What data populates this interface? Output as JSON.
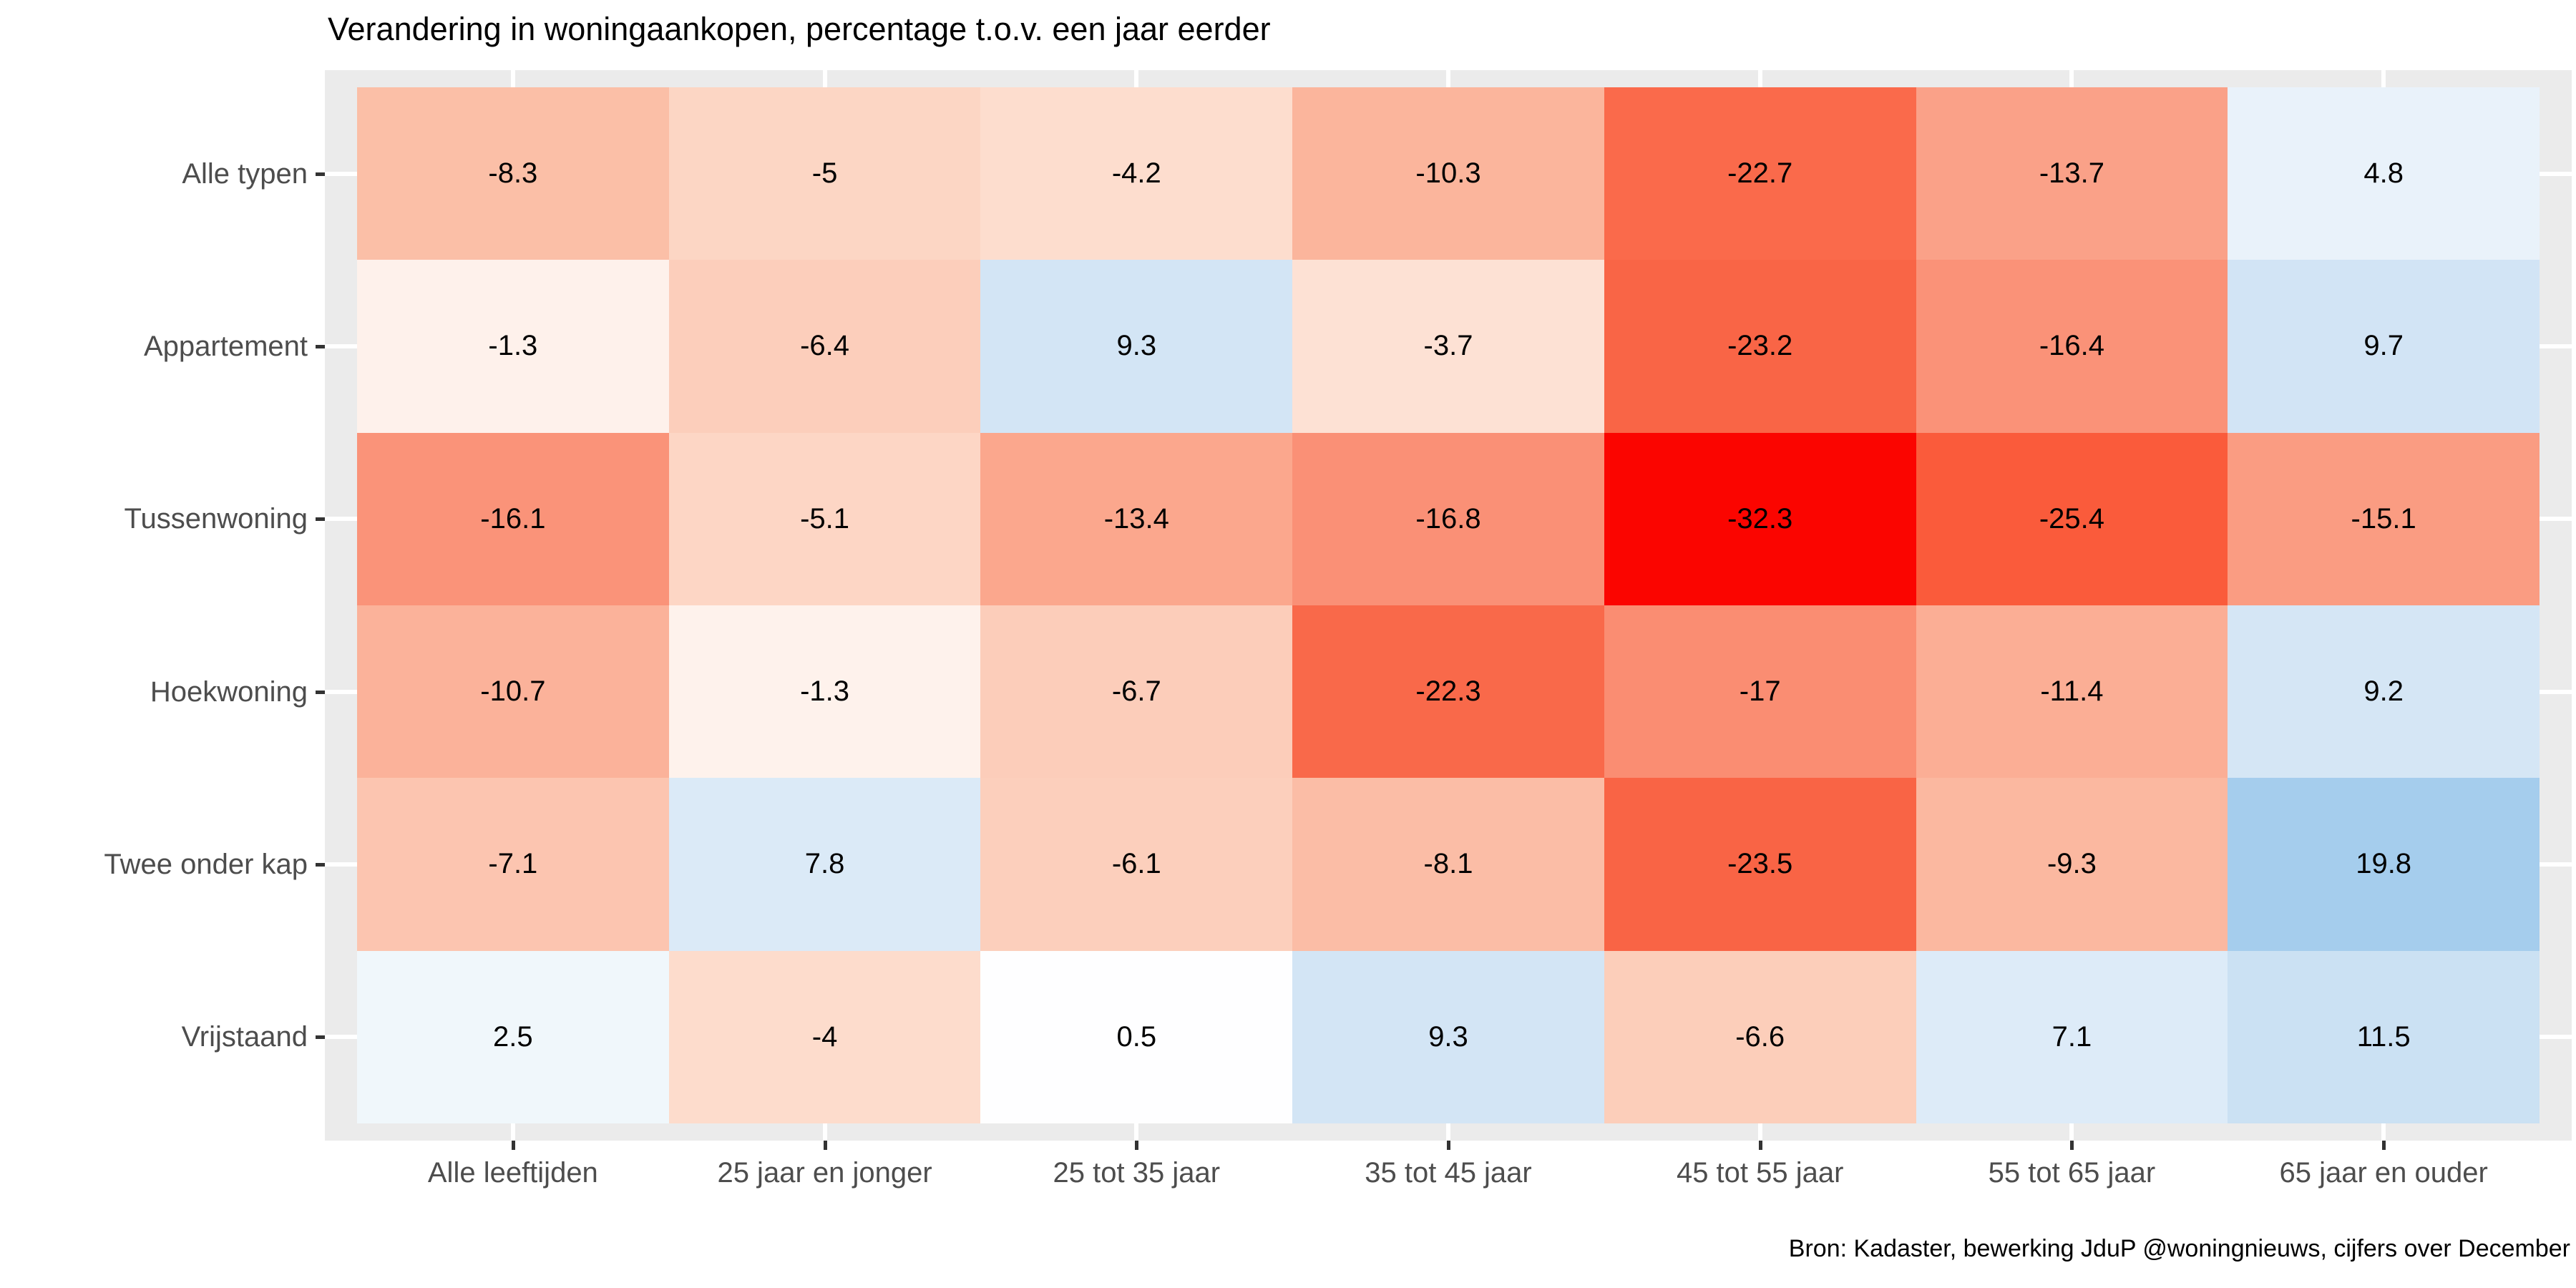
{
  "page": {
    "title": "Verandering in woningaankopen, percentage t.o.v. een jaar eerder",
    "source_note": "Bron: Kadaster, bewerking JduP @woningnieuws, cijfers over December"
  },
  "chart_data": {
    "type": "heatmap",
    "title": "Verandering in woningaankopen, percentage t.o.v. een jaar eerder",
    "x_categories": [
      "Alle leeftijden",
      "25 jaar en jonger",
      "25 tot 35 jaar",
      "35 tot 45 jaar",
      "45 tot 55 jaar",
      "55 tot 65 jaar",
      "65 jaar en ouder"
    ],
    "y_categories": [
      "Alle typen",
      "Appartement",
      "Tussenwoning",
      "Hoekwoning",
      "Twee onder kap",
      "Vrijstaand"
    ],
    "series": [
      {
        "name": "Alle typen",
        "values": [
          -8.3,
          -5,
          -4.2,
          -10.3,
          -22.7,
          -13.7,
          4.8
        ],
        "cell_colors": [
          "#FBBFA7",
          "#FCD6C4",
          "#FDDDCE",
          "#FBB59C",
          "#FA6A4B",
          "#FAA188",
          "#E9F2FA"
        ]
      },
      {
        "name": "Appartement",
        "values": [
          -1.3,
          -6.4,
          9.3,
          -3.7,
          -23.2,
          -16.4,
          9.7
        ],
        "cell_colors": [
          "#FEF1EB",
          "#FCCEBB",
          "#D3E5F5",
          "#FDE1D4",
          "#F96546",
          "#FA9278",
          "#D2E4F5"
        ]
      },
      {
        "name": "Tussenwoning",
        "values": [
          -16.1,
          -5.1,
          -13.4,
          -16.8,
          -32.3,
          -25.4,
          -15.1
        ],
        "cell_colors": [
          "#FA9379",
          "#FDD6C5",
          "#FBA78D",
          "#FA9076",
          "#FB0500",
          "#FA5B3B",
          "#FA9C82"
        ]
      },
      {
        "name": "Hoekwoning",
        "values": [
          -10.7,
          -1.3,
          -6.7,
          -22.3,
          -17,
          -11.4,
          9.2
        ],
        "cell_colors": [
          "#FBB29A",
          "#FEF2EC",
          "#FCCDBA",
          "#F9694A",
          "#FA8D72",
          "#FBAE95",
          "#D5E6F5"
        ]
      },
      {
        "name": "Twee onder kap",
        "values": [
          -7.1,
          7.8,
          -6.1,
          -8.1,
          -23.5,
          -9.3,
          19.8
        ],
        "cell_colors": [
          "#FCC5B0",
          "#DBEAF7",
          "#FCCFBC",
          "#FBBDA6",
          "#F96445",
          "#FBB8A0",
          "#A5CDED"
        ]
      },
      {
        "name": "Vrijstaand",
        "values": [
          2.5,
          -4,
          0.5,
          9.3,
          -6.6,
          7.1,
          11.5
        ],
        "cell_colors": [
          "#F0F7FB",
          "#FDDCCC",
          "#FEFEFF",
          "#D3E5F5",
          "#FCCEBA",
          "#DDEBF8",
          "#CBE1F3"
        ]
      }
    ],
    "value_domain": [
      -32.3,
      19.8
    ],
    "colorscale": {
      "negative_end": "#FB0500",
      "mid": "#FFFFFF",
      "positive_end": "#6CAEE2"
    },
    "panel_background": "#EBEBEB",
    "gridline_color": "#FFFFFF",
    "axis_text_color": "#4D4D4D",
    "tick_color": "#333333",
    "legend": "none",
    "xlabel": "",
    "ylabel": ""
  }
}
